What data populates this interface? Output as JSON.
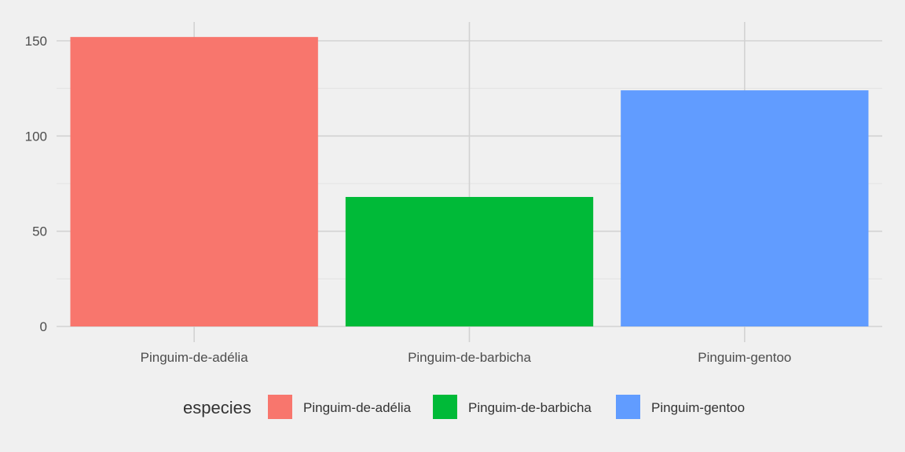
{
  "chart_data": {
    "type": "bar",
    "categories": [
      "Pinguim-de-adélia",
      "Pinguim-de-barbicha",
      "Pinguim-gentoo"
    ],
    "values": [
      152,
      68,
      124
    ],
    "colors": [
      "#F8766D",
      "#00BA38",
      "#619CFF"
    ],
    "yticks": [
      0,
      50,
      100,
      150
    ],
    "ylim": [
      0,
      160
    ],
    "grid": true,
    "legend": {
      "title": "especies",
      "position": "bottom",
      "entries": [
        "Pinguim-de-adélia",
        "Pinguim-de-barbicha",
        "Pinguim-gentoo"
      ]
    }
  }
}
